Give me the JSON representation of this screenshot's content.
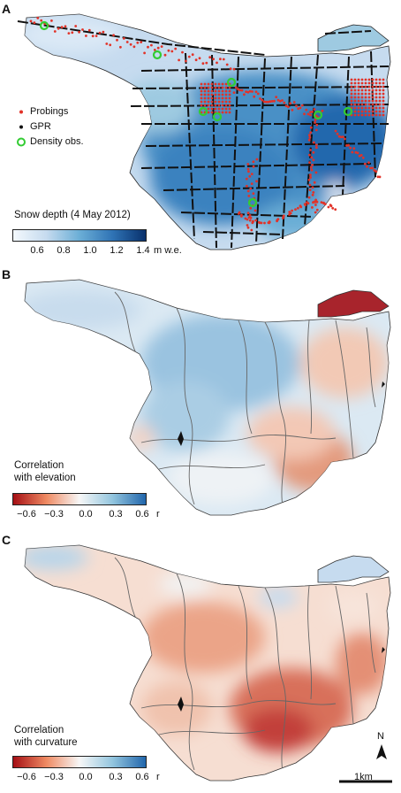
{
  "panels": {
    "a": {
      "letter": "A",
      "legend": {
        "probings": "Probings",
        "gpr": "GPR",
        "density": "Density obs."
      },
      "colorbar": {
        "title": "Snow depth (4 May 2012)",
        "ticks": [
          "0.6",
          "0.8",
          "1.0",
          "1.2",
          "1.4"
        ],
        "unit": "m w.e.",
        "colors": [
          "#f4f9fd",
          "#c6dbef",
          "#6baed6",
          "#2f73b5",
          "#08306b"
        ]
      },
      "symbol_colors": {
        "probing": "#e23228",
        "gpr": "#111111",
        "density": "#33cc33"
      }
    },
    "b": {
      "letter": "B",
      "colorbar": {
        "title_line1": "Correlation",
        "title_line2": "with elevation",
        "ticks": [
          "−0.6",
          "−0.3",
          "0.0",
          "0.3",
          "0.6"
        ],
        "unit": "r",
        "colors": [
          "#a50f15",
          "#ef8a62",
          "#f7f7f7",
          "#92c5de",
          "#2166ac"
        ]
      }
    },
    "c": {
      "letter": "C",
      "colorbar": {
        "title_line1": "Correlation",
        "title_line2": "with curvature",
        "ticks": [
          "−0.6",
          "−0.3",
          "0.0",
          "0.3",
          "0.6"
        ],
        "unit": "r",
        "colors": [
          "#a50f15",
          "#ef8a62",
          "#f7f7f7",
          "#92c5de",
          "#2166ac"
        ]
      },
      "north": "N",
      "scale_label": "1km"
    }
  }
}
